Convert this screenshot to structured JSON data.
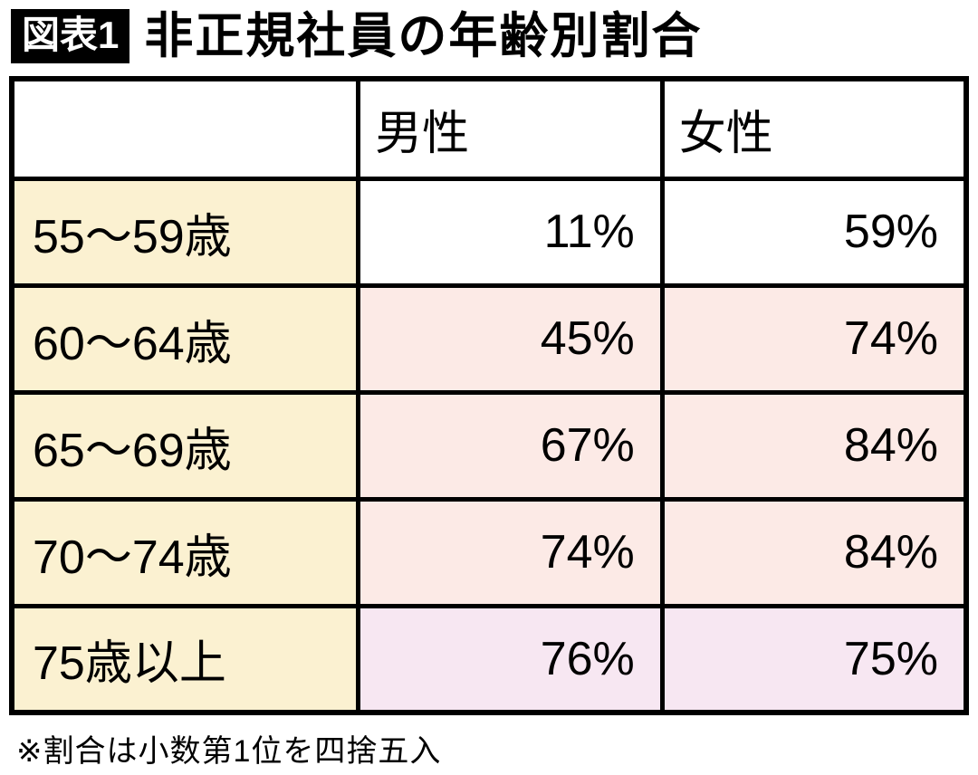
{
  "header": {
    "badge": "図表1",
    "title": "非正規社員の年齢別割合"
  },
  "table": {
    "columns": [
      "",
      "男性",
      "女性"
    ],
    "rows": [
      {
        "label": "55〜59歳",
        "male": "11%",
        "female": "59%"
      },
      {
        "label": "60〜64歳",
        "male": "45%",
        "female": "74%"
      },
      {
        "label": "65〜69歳",
        "male": "67%",
        "female": "84%"
      },
      {
        "label": "70〜74歳",
        "male": "74%",
        "female": "84%"
      },
      {
        "label": "75歳以上",
        "male": "76%",
        "female": "75%"
      }
    ]
  },
  "footnote": "※割合は小数第1位を四捨五入",
  "colors": {
    "badge_bg": "#000000",
    "border": "#000000",
    "label_bg": "#fbf1d1",
    "row1_value_bg": "#ffffff",
    "rows2to4_value_bg": "#fceae6",
    "row5_value_bg": "#f7e7f2"
  },
  "chart_data": {
    "type": "table",
    "title": "非正規社員の年齢別割合",
    "categories": [
      "55〜59歳",
      "60〜64歳",
      "65〜69歳",
      "70〜74歳",
      "75歳以上"
    ],
    "series": [
      {
        "name": "男性",
        "values": [
          11,
          45,
          67,
          74,
          76
        ]
      },
      {
        "name": "女性",
        "values": [
          59,
          74,
          84,
          84,
          75
        ]
      }
    ],
    "unit": "%",
    "note": "※割合は小数第1位を四捨五入"
  }
}
